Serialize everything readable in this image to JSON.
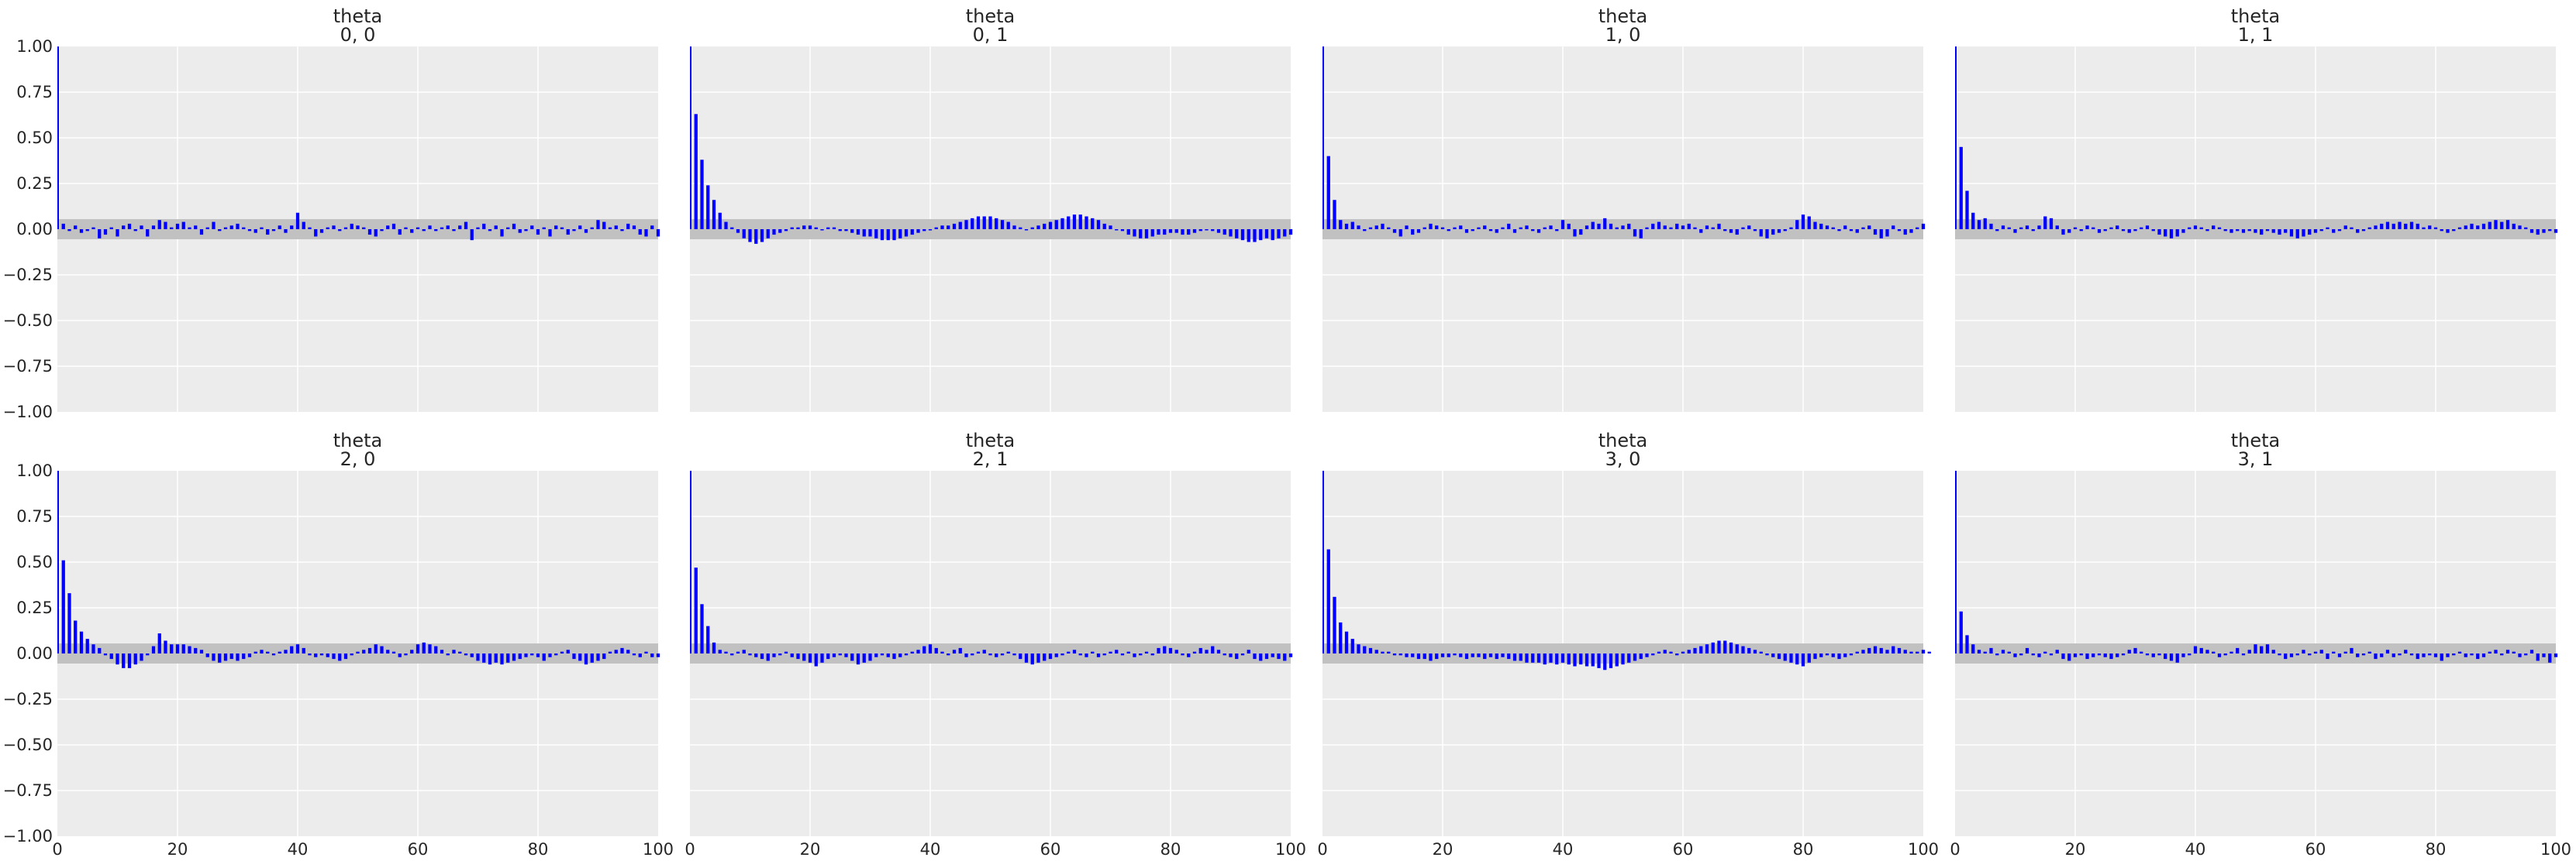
{
  "chart_data": [
    {
      "type": "bar",
      "title_line1": "theta",
      "title_line2": "0, 0",
      "xlim": [
        0,
        100
      ],
      "ylim": [
        -1,
        1
      ],
      "band": [
        -0.055,
        0.055
      ],
      "values": [
        1.0,
        0.03,
        -0.01,
        0.02,
        -0.02,
        -0.01,
        0.01,
        -0.05,
        -0.03,
        0.01,
        -0.04,
        0.02,
        0.03,
        -0.01,
        0.02,
        -0.04,
        0.02,
        0.05,
        0.04,
        0.01,
        0.03,
        0.04,
        0.01,
        0.02,
        -0.03,
        0.01,
        0.04,
        -0.01,
        0.01,
        0.02,
        0.03,
        0.01,
        -0.01,
        -0.02,
        0.01,
        -0.03,
        -0.01,
        0.02,
        -0.02,
        0.02,
        0.09,
        0.04,
        0.01,
        -0.04,
        -0.02,
        0.01,
        0.02,
        -0.01,
        0.01,
        0.03,
        0.02,
        0.01,
        -0.03,
        -0.04,
        -0.01,
        0.02,
        0.03,
        -0.03,
        0.01,
        -0.02,
        0.01,
        -0.01,
        0.02,
        -0.01,
        0.01,
        0.02,
        -0.01,
        0.02,
        0.04,
        -0.06,
        0.01,
        0.03,
        -0.01,
        0.02,
        -0.04,
        0.01,
        0.03,
        -0.02,
        -0.01,
        0.02,
        -0.03,
        0.01,
        -0.04,
        0.02,
        0.01,
        -0.03,
        -0.01,
        0.02,
        -0.02,
        0.01,
        0.05,
        0.04,
        0.01,
        0.02,
        -0.01,
        0.03,
        0.02,
        -0.03,
        -0.04,
        0.02,
        -0.04
      ]
    },
    {
      "type": "bar",
      "title_line1": "theta",
      "title_line2": "0, 1",
      "xlim": [
        0,
        100
      ],
      "ylim": [
        -1,
        1
      ],
      "band": [
        -0.055,
        0.055
      ],
      "values": [
        1.0,
        0.63,
        0.38,
        0.24,
        0.16,
        0.09,
        0.04,
        0.01,
        -0.02,
        -0.05,
        -0.07,
        -0.08,
        -0.07,
        -0.05,
        -0.03,
        -0.02,
        -0.01,
        0.01,
        0.01,
        0.02,
        0.02,
        0.01,
        0.0,
        0.01,
        0.01,
        -0.01,
        -0.01,
        -0.02,
        -0.03,
        -0.04,
        -0.04,
        -0.05,
        -0.06,
        -0.06,
        -0.06,
        -0.05,
        -0.04,
        -0.03,
        -0.02,
        -0.01,
        0.0,
        0.01,
        0.02,
        0.02,
        0.03,
        0.04,
        0.05,
        0.06,
        0.07,
        0.07,
        0.07,
        0.06,
        0.05,
        0.04,
        0.02,
        0.01,
        0.0,
        0.01,
        0.02,
        0.03,
        0.04,
        0.05,
        0.06,
        0.07,
        0.08,
        0.08,
        0.07,
        0.06,
        0.05,
        0.03,
        0.02,
        0.0,
        -0.01,
        -0.03,
        -0.04,
        -0.05,
        -0.05,
        -0.04,
        -0.03,
        -0.03,
        -0.02,
        -0.02,
        -0.03,
        -0.03,
        -0.02,
        -0.01,
        0.0,
        -0.01,
        -0.02,
        -0.03,
        -0.04,
        -0.05,
        -0.06,
        -0.07,
        -0.07,
        -0.06,
        -0.05,
        -0.06,
        -0.05,
        -0.04,
        -0.03
      ]
    },
    {
      "type": "bar",
      "title_line1": "theta",
      "title_line2": "1, 0",
      "xlim": [
        0,
        100
      ],
      "ylim": [
        -1,
        1
      ],
      "band": [
        -0.055,
        0.055
      ],
      "values": [
        1.0,
        0.4,
        0.16,
        0.05,
        0.03,
        0.04,
        0.02,
        -0.01,
        0.01,
        0.02,
        0.03,
        0.01,
        -0.02,
        -0.04,
        0.02,
        -0.03,
        -0.02,
        0.01,
        0.03,
        0.02,
        0.01,
        -0.01,
        0.01,
        0.02,
        -0.02,
        -0.01,
        0.01,
        0.02,
        -0.01,
        -0.02,
        0.01,
        0.03,
        -0.02,
        0.01,
        0.02,
        -0.01,
        -0.02,
        0.01,
        0.02,
        -0.01,
        0.05,
        0.03,
        -0.04,
        -0.03,
        0.02,
        0.04,
        0.03,
        0.06,
        0.03,
        0.01,
        0.02,
        0.03,
        -0.04,
        -0.05,
        0.01,
        0.03,
        0.04,
        0.02,
        0.01,
        0.03,
        0.02,
        0.03,
        0.01,
        -0.02,
        0.02,
        0.01,
        0.03,
        -0.01,
        -0.02,
        -0.03,
        0.01,
        0.02,
        -0.01,
        -0.04,
        -0.05,
        -0.03,
        -0.02,
        -0.01,
        0.01,
        0.05,
        0.08,
        0.07,
        0.04,
        0.03,
        0.02,
        0.01,
        -0.01,
        0.02,
        -0.01,
        -0.02,
        0.01,
        0.02,
        -0.03,
        -0.05,
        -0.04,
        0.02,
        -0.01,
        -0.03,
        -0.02,
        0.01,
        0.03
      ]
    },
    {
      "type": "bar",
      "title_line1": "theta",
      "title_line2": "1, 1",
      "xlim": [
        0,
        100
      ],
      "ylim": [
        -1,
        1
      ],
      "band": [
        -0.055,
        0.055
      ],
      "values": [
        1.0,
        0.45,
        0.21,
        0.09,
        0.05,
        0.06,
        0.03,
        -0.01,
        0.02,
        0.01,
        -0.02,
        0.01,
        0.02,
        -0.01,
        0.02,
        0.07,
        0.06,
        0.02,
        -0.03,
        -0.02,
        0.01,
        -0.01,
        0.02,
        0.01,
        -0.02,
        -0.01,
        0.01,
        0.02,
        -0.01,
        -0.02,
        -0.01,
        0.01,
        0.02,
        -0.01,
        -0.03,
        -0.04,
        -0.05,
        -0.04,
        -0.02,
        0.01,
        0.02,
        0.01,
        -0.01,
        0.02,
        0.01,
        -0.01,
        -0.02,
        -0.01,
        -0.02,
        -0.01,
        -0.02,
        -0.03,
        -0.01,
        -0.02,
        -0.03,
        -0.02,
        -0.04,
        -0.05,
        -0.04,
        -0.03,
        -0.02,
        -0.01,
        0.01,
        -0.02,
        -0.01,
        0.02,
        0.01,
        -0.02,
        -0.01,
        0.01,
        0.02,
        0.03,
        0.04,
        0.03,
        0.04,
        0.03,
        0.04,
        0.03,
        0.01,
        0.02,
        0.01,
        -0.01,
        -0.02,
        -0.01,
        0.01,
        0.02,
        0.03,
        0.02,
        0.03,
        0.04,
        0.05,
        0.04,
        0.05,
        0.03,
        0.02,
        0.01,
        -0.02,
        -0.03,
        -0.02,
        -0.01,
        -0.02
      ]
    },
    {
      "type": "bar",
      "title_line1": "theta",
      "title_line2": "2, 0",
      "xlim": [
        0,
        100
      ],
      "ylim": [
        -1,
        1
      ],
      "band": [
        -0.055,
        0.055
      ],
      "values": [
        1.0,
        0.51,
        0.33,
        0.18,
        0.12,
        0.08,
        0.05,
        0.03,
        -0.01,
        -0.03,
        -0.06,
        -0.08,
        -0.08,
        -0.06,
        -0.04,
        -0.01,
        0.04,
        0.11,
        0.07,
        0.05,
        0.05,
        0.05,
        0.04,
        0.03,
        0.02,
        -0.02,
        -0.04,
        -0.05,
        -0.04,
        -0.03,
        -0.04,
        -0.03,
        -0.02,
        0.01,
        0.02,
        0.01,
        -0.01,
        0.01,
        0.02,
        0.04,
        0.05,
        0.03,
        -0.01,
        -0.02,
        -0.01,
        -0.02,
        -0.03,
        -0.04,
        -0.03,
        -0.01,
        0.01,
        0.02,
        0.03,
        0.05,
        0.04,
        0.02,
        0.01,
        -0.02,
        -0.01,
        0.02,
        0.05,
        0.06,
        0.05,
        0.04,
        0.02,
        -0.01,
        0.02,
        0.01,
        -0.01,
        -0.02,
        -0.04,
        -0.05,
        -0.06,
        -0.05,
        -0.06,
        -0.05,
        -0.04,
        -0.03,
        -0.02,
        -0.01,
        -0.02,
        -0.04,
        -0.02,
        -0.01,
        0.01,
        0.02,
        -0.03,
        -0.04,
        -0.06,
        -0.05,
        -0.04,
        -0.03,
        0.01,
        0.02,
        0.03,
        0.02,
        -0.01,
        -0.02,
        0.01,
        -0.02,
        -0.02
      ]
    },
    {
      "type": "bar",
      "title_line1": "theta",
      "title_line2": "2, 1",
      "xlim": [
        0,
        100
      ],
      "ylim": [
        -1,
        1
      ],
      "band": [
        -0.055,
        0.055
      ],
      "values": [
        1.0,
        0.47,
        0.27,
        0.15,
        0.06,
        0.02,
        0.01,
        -0.01,
        0.01,
        0.02,
        -0.01,
        -0.02,
        -0.03,
        -0.04,
        -0.02,
        -0.01,
        0.01,
        -0.02,
        -0.03,
        -0.04,
        -0.05,
        -0.07,
        -0.05,
        -0.03,
        -0.02,
        -0.01,
        -0.02,
        -0.04,
        -0.06,
        -0.05,
        -0.04,
        -0.02,
        -0.01,
        -0.02,
        -0.03,
        -0.02,
        -0.01,
        0.01,
        0.02,
        0.04,
        0.05,
        0.03,
        0.01,
        -0.01,
        0.02,
        0.03,
        -0.02,
        -0.01,
        0.01,
        0.02,
        -0.01,
        -0.02,
        -0.01,
        0.01,
        -0.01,
        -0.03,
        -0.05,
        -0.06,
        -0.05,
        -0.04,
        -0.03,
        -0.02,
        -0.01,
        0.01,
        0.02,
        -0.01,
        -0.02,
        0.01,
        -0.02,
        -0.01,
        0.01,
        0.02,
        -0.01,
        0.01,
        -0.02,
        -0.01,
        0.01,
        -0.01,
        0.03,
        0.04,
        0.03,
        0.02,
        -0.01,
        -0.02,
        0.01,
        0.03,
        0.02,
        0.04,
        0.02,
        -0.01,
        -0.02,
        -0.03,
        -0.01,
        0.02,
        -0.03,
        -0.04,
        -0.03,
        -0.02,
        -0.03,
        -0.04,
        -0.02
      ]
    },
    {
      "type": "bar",
      "title_line1": "theta",
      "title_line2": "3, 0",
      "xlim": [
        0,
        100
      ],
      "ylim": [
        -1,
        1
      ],
      "band": [
        -0.055,
        0.055
      ],
      "values": [
        1.0,
        0.57,
        0.31,
        0.17,
        0.12,
        0.08,
        0.05,
        0.04,
        0.03,
        0.02,
        0.01,
        0.01,
        -0.01,
        -0.01,
        -0.02,
        -0.02,
        -0.03,
        -0.03,
        -0.04,
        -0.03,
        -0.02,
        -0.02,
        -0.01,
        -0.02,
        -0.03,
        -0.02,
        -0.02,
        -0.03,
        -0.02,
        -0.03,
        -0.02,
        -0.03,
        -0.04,
        -0.04,
        -0.05,
        -0.05,
        -0.05,
        -0.06,
        -0.05,
        -0.06,
        -0.05,
        -0.06,
        -0.07,
        -0.06,
        -0.07,
        -0.07,
        -0.08,
        -0.09,
        -0.08,
        -0.07,
        -0.06,
        -0.05,
        -0.04,
        -0.03,
        -0.02,
        -0.01,
        0.01,
        0.02,
        0.01,
        -0.01,
        0.01,
        0.02,
        0.03,
        0.04,
        0.05,
        0.06,
        0.07,
        0.07,
        0.06,
        0.05,
        0.04,
        0.03,
        0.02,
        0.01,
        -0.01,
        -0.02,
        -0.03,
        -0.04,
        -0.05,
        -0.06,
        -0.07,
        -0.05,
        -0.03,
        -0.02,
        -0.01,
        -0.02,
        -0.03,
        -0.02,
        -0.01,
        0.01,
        0.02,
        0.03,
        0.04,
        0.03,
        0.02,
        0.04,
        0.03,
        0.02,
        0.01,
        0.01,
        0.02,
        0.01
      ]
    },
    {
      "type": "bar",
      "title_line1": "theta",
      "title_line2": "3, 1",
      "xlim": [
        0,
        100
      ],
      "ylim": [
        -1,
        1
      ],
      "band": [
        -0.055,
        0.055
      ],
      "values": [
        1.0,
        0.23,
        0.1,
        0.05,
        0.02,
        0.01,
        0.03,
        -0.01,
        0.02,
        0.01,
        -0.02,
        -0.01,
        0.03,
        -0.01,
        -0.02,
        0.01,
        -0.01,
        0.02,
        -0.03,
        -0.04,
        -0.02,
        -0.01,
        -0.03,
        -0.02,
        -0.01,
        -0.02,
        -0.03,
        -0.02,
        -0.01,
        0.02,
        0.03,
        0.01,
        -0.01,
        -0.02,
        -0.01,
        -0.03,
        -0.04,
        -0.05,
        -0.02,
        -0.01,
        0.04,
        0.03,
        0.02,
        0.01,
        -0.02,
        -0.01,
        0.01,
        0.03,
        -0.01,
        0.02,
        0.05,
        0.04,
        0.05,
        0.02,
        -0.01,
        -0.03,
        -0.02,
        -0.01,
        0.02,
        -0.01,
        0.01,
        0.02,
        -0.03,
        0.01,
        -0.02,
        0.01,
        0.03,
        -0.02,
        -0.01,
        0.01,
        -0.03,
        -0.02,
        0.02,
        -0.02,
        -0.01,
        0.02,
        -0.01,
        -0.03,
        -0.02,
        -0.01,
        -0.02,
        -0.04,
        -0.02,
        -0.01,
        0.01,
        -0.02,
        -0.01,
        -0.03,
        -0.02,
        0.01,
        0.02,
        -0.01,
        0.02,
        0.01,
        -0.02,
        -0.01,
        0.02,
        -0.04,
        -0.02,
        -0.05,
        -0.02
      ]
    }
  ],
  "axes": {
    "y_ticks": [
      "1.00",
      "0.75",
      "0.50",
      "0.25",
      "0.00",
      "−0.25",
      "−0.50",
      "−0.75",
      "−1.00"
    ],
    "x_ticks": [
      "0",
      "20",
      "40",
      "60",
      "80",
      "100"
    ]
  },
  "colors": {
    "bar": "#0000ff",
    "band": "#c1c1c1",
    "panel_bg": "#ececec",
    "grid": "#ffffff",
    "text": "#262626"
  }
}
